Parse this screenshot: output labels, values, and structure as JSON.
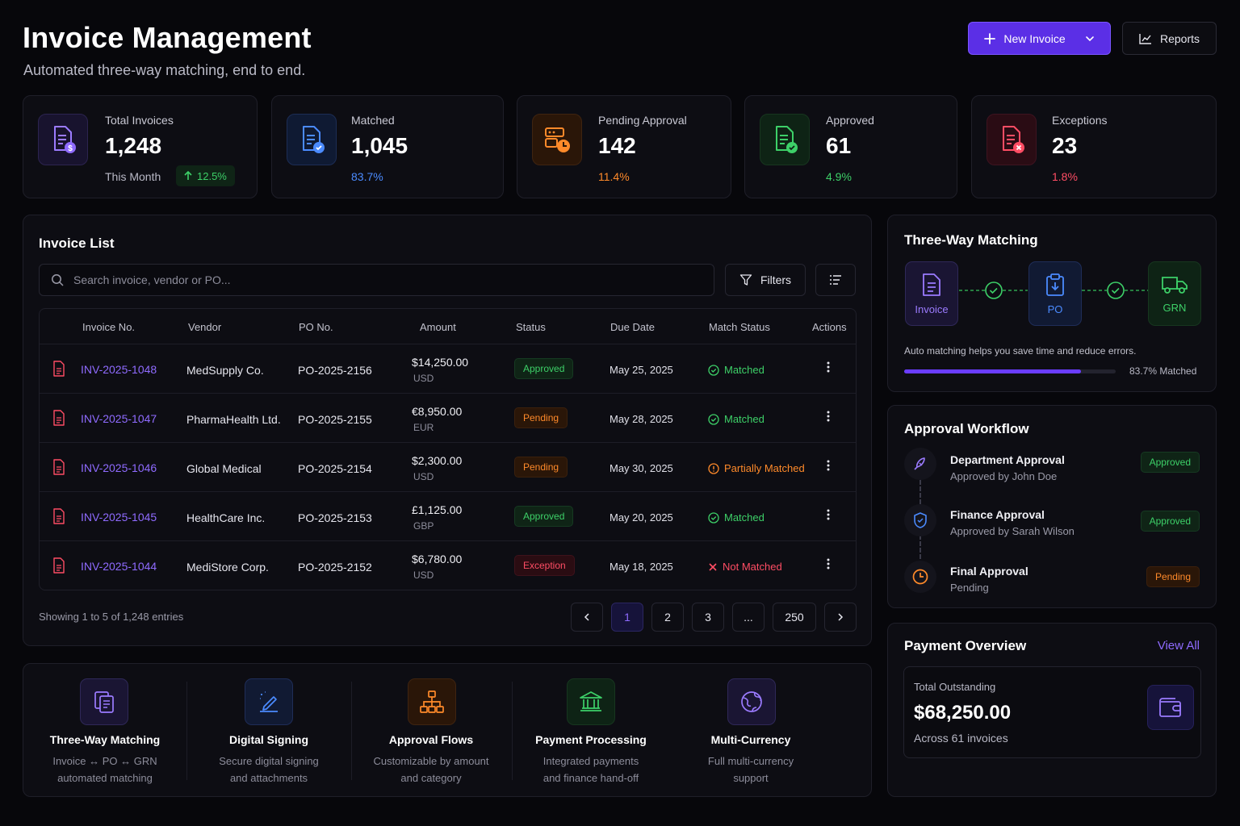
{
  "header": {
    "title": "Invoice Management",
    "subtitle": "Automated three-way matching, end to end.",
    "new_invoice_label": "New Invoice",
    "reports_label": "Reports"
  },
  "stats": [
    {
      "label": "Total Invoices",
      "value": "1,248",
      "sub": "This Month",
      "delta": "12.5%",
      "color": "#8f6bff"
    },
    {
      "label": "Matched",
      "value": "1,045",
      "sub": "83.7%",
      "color": "#4b8bff"
    },
    {
      "label": "Pending Approval",
      "value": "142",
      "sub": "11.4%",
      "color": "#ff8a2a"
    },
    {
      "label": "Approved",
      "value": "61",
      "sub": "4.9%",
      "color": "#3dd068"
    },
    {
      "label": "Exceptions",
      "value": "23",
      "sub": "1.8%",
      "color": "#ff4d64"
    }
  ],
  "invoice_list": {
    "title": "Invoice List",
    "search_placeholder": "Search invoice, vendor or PO...",
    "filters_label": "Filters",
    "columns": [
      "Invoice No.",
      "Vendor",
      "PO No.",
      "Amount",
      "Status",
      "Due Date",
      "Match Status",
      "Actions"
    ],
    "rows": [
      {
        "invoice": "INV-2025-1048",
        "vendor": "MedSupply Co.",
        "po": "PO-2025-2156",
        "amount": "$14,250.00",
        "currency": "USD",
        "status": "Approved",
        "due": "May 25, 2025",
        "match": "Matched"
      },
      {
        "invoice": "INV-2025-1047",
        "vendor": "PharmaHealth Ltd.",
        "po": "PO-2025-2155",
        "amount": "€8,950.00",
        "currency": "EUR",
        "status": "Pending",
        "due": "May 28, 2025",
        "match": "Matched"
      },
      {
        "invoice": "INV-2025-1046",
        "vendor": "Global Medical",
        "po": "PO-2025-2154",
        "amount": "$2,300.00",
        "currency": "USD",
        "status": "Pending",
        "due": "May 30, 2025",
        "match": "Partially Matched"
      },
      {
        "invoice": "INV-2025-1045",
        "vendor": "HealthCare Inc.",
        "po": "PO-2025-2153",
        "amount": "£1,125.00",
        "currency": "GBP",
        "status": "Approved",
        "due": "May 20, 2025",
        "match": "Matched"
      },
      {
        "invoice": "INV-2025-1044",
        "vendor": "MediStore Corp.",
        "po": "PO-2025-2152",
        "amount": "$6,780.00",
        "currency": "USD",
        "status": "Exception",
        "due": "May 18, 2025",
        "match": "Not Matched"
      }
    ],
    "showing": "Showing 1 to 5 of 1,248 entries",
    "pages": [
      "1",
      "2",
      "3",
      "...",
      "250"
    ],
    "current_page": "1"
  },
  "three_way": {
    "title": "Three-Way Matching",
    "nodes": [
      "Invoice",
      "PO",
      "GRN"
    ],
    "note": "Auto matching helps you save time and reduce errors.",
    "progress_label": "83.7% Matched",
    "progress": 0.837
  },
  "approval": {
    "title": "Approval Workflow",
    "steps": [
      {
        "title": "Department Approval",
        "sub": "Approved by John Doe",
        "status": "Approved"
      },
      {
        "title": "Finance Approval",
        "sub": "Approved by Sarah Wilson",
        "status": "Approved"
      },
      {
        "title": "Final Approval",
        "sub": "Pending",
        "status": "Pending"
      }
    ]
  },
  "payment": {
    "title": "Payment Overview",
    "view_all": "View All",
    "label": "Total Outstanding",
    "amount": "$68,250.00",
    "sub": "Across 61 invoices"
  },
  "features": [
    {
      "title": "Three-Way Matching",
      "line1": "Invoice ↔ PO ↔ GRN",
      "line2": "automated matching"
    },
    {
      "title": "Digital Signing",
      "line1": "Secure digital signing",
      "line2": "and attachments"
    },
    {
      "title": "Approval Flows",
      "line1": "Customizable by amount",
      "line2": "and category"
    },
    {
      "title": "Payment Processing",
      "line1": "Integrated payments",
      "line2": "and finance hand-off"
    },
    {
      "title": "Multi-Currency",
      "line1": "Full multi-currency",
      "line2": "support"
    }
  ]
}
